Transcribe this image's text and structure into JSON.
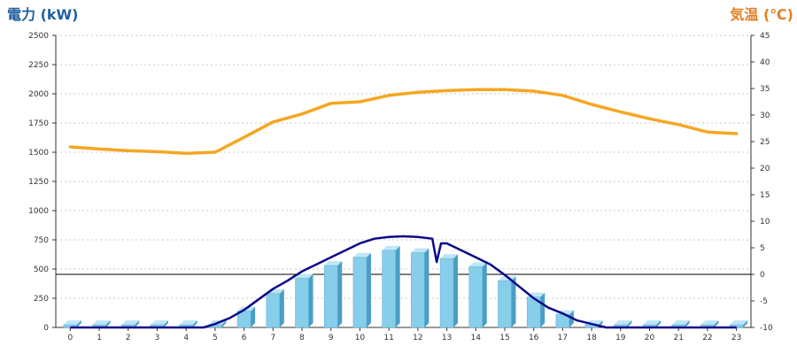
{
  "chart_data": {
    "type": "bar",
    "title_left": "電力 (kW)",
    "title_right": "気温 (℃)",
    "categories": [
      "0",
      "1",
      "2",
      "3",
      "4",
      "5",
      "6",
      "7",
      "8",
      "9",
      "10",
      "11",
      "12",
      "13",
      "14",
      "15",
      "16",
      "17",
      "18",
      "19",
      "20",
      "21",
      "22",
      "23"
    ],
    "y_left": {
      "min": 0,
      "max": 2500,
      "ticks": [
        0,
        250,
        500,
        750,
        1000,
        1250,
        1500,
        1750,
        2000,
        2250,
        2500
      ]
    },
    "y_right": {
      "min": -10,
      "max": 45,
      "ticks": [
        -10,
        -5,
        0,
        5,
        10,
        15,
        20,
        25,
        30,
        35,
        40,
        45
      ]
    },
    "grid": true,
    "colors": {
      "bar": "#87ceeb",
      "bar_side": "#4a9ec4",
      "bar_top": "#bfe6f7",
      "temp": "#f5a623",
      "power": "#0a0a8a"
    },
    "series": [
      {
        "type": "bar",
        "axis": "left",
        "values": [
          0,
          0,
          0,
          0,
          0,
          20,
          140,
          290,
          420,
          530,
          600,
          660,
          640,
          590,
          520,
          400,
          260,
          110,
          20,
          0,
          0,
          0,
          0,
          0
        ]
      },
      {
        "type": "line",
        "axis": "right",
        "values": [
          24,
          23.6,
          23.3,
          23.1,
          22.8,
          23,
          25.8,
          28.7,
          30.2,
          32.2,
          32.5,
          33.7,
          34.3,
          34.6,
          34.8,
          34.8,
          34.5,
          33.7,
          32,
          30.6,
          29.3,
          28.2,
          26.8,
          26.5
        ]
      },
      {
        "type": "line",
        "axis": "left",
        "x": [
          0,
          1,
          2,
          3,
          4,
          4.6,
          5,
          5.5,
          6,
          6.5,
          7,
          7.5,
          8,
          8.5,
          9,
          9.5,
          10,
          10.5,
          11,
          11.5,
          12,
          12.5,
          12.65,
          12.8,
          13,
          13.5,
          14,
          14.5,
          15,
          15.5,
          16,
          16.5,
          17,
          17.5,
          18,
          18.5,
          19,
          20,
          21,
          22,
          23
        ],
        "values": [
          0,
          0,
          0,
          0,
          0,
          0,
          30,
          80,
          150,
          240,
          330,
          400,
          480,
          540,
          600,
          660,
          720,
          760,
          775,
          780,
          775,
          760,
          560,
          720,
          720,
          660,
          600,
          540,
          450,
          350,
          250,
          170,
          120,
          60,
          30,
          0,
          0,
          0,
          0,
          0,
          0
        ]
      }
    ],
    "reference_line": {
      "axis": "right",
      "value": 0
    }
  }
}
